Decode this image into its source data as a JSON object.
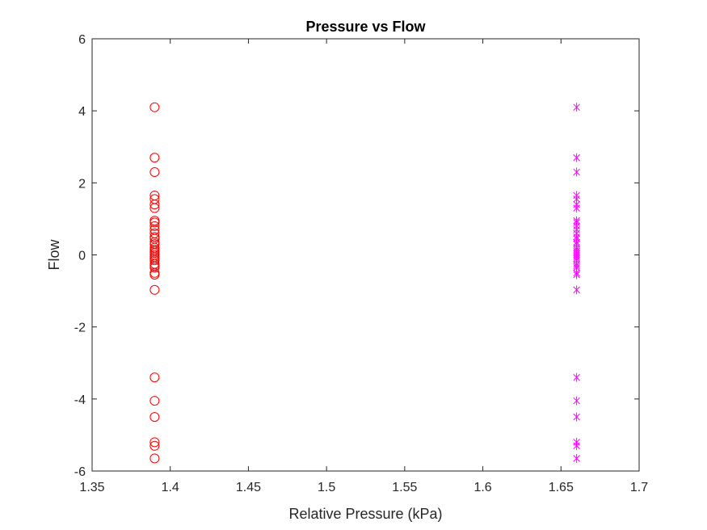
{
  "chart_data": {
    "type": "scatter",
    "title": "Pressure vs Flow",
    "xlabel": "Relative Pressure (kPa)",
    "ylabel": "Flow",
    "xlim": [
      1.35,
      1.7
    ],
    "ylim": [
      -6,
      6
    ],
    "xticks": [
      "1.35",
      "1.4",
      "1.45",
      "1.5",
      "1.55",
      "1.6",
      "1.65",
      "1.7"
    ],
    "yticks": [
      "-6",
      "-4",
      "-2",
      "0",
      "2",
      "4",
      "6"
    ],
    "grid": false,
    "box": true,
    "series": [
      {
        "marker": "circle",
        "color": "#ff0000",
        "x": 1.39,
        "y": [
          4.1,
          2.7,
          2.3,
          1.65,
          1.55,
          1.4,
          1.3,
          0.95,
          0.9,
          0.8,
          0.7,
          0.6,
          0.5,
          0.45,
          0.35,
          0.3,
          0.2,
          0.15,
          0.1,
          0.05,
          0.0,
          -0.05,
          -0.1,
          -0.15,
          -0.25,
          -0.3,
          -0.35,
          -0.5,
          -0.55,
          -0.97,
          -3.4,
          -4.05,
          -4.5,
          -5.2,
          -5.3,
          -5.65
        ]
      },
      {
        "marker": "asterisk",
        "color": "#ff00ff",
        "x": 1.66,
        "y": [
          4.1,
          2.7,
          2.3,
          1.65,
          1.55,
          1.4,
          1.3,
          0.95,
          0.9,
          0.8,
          0.7,
          0.6,
          0.5,
          0.45,
          0.35,
          0.3,
          0.2,
          0.15,
          0.1,
          0.05,
          0.0,
          -0.05,
          -0.1,
          -0.15,
          -0.25,
          -0.3,
          -0.35,
          -0.5,
          -0.55,
          -0.97,
          -3.4,
          -4.05,
          -4.5,
          -5.2,
          -5.3,
          -5.65
        ]
      }
    ]
  }
}
